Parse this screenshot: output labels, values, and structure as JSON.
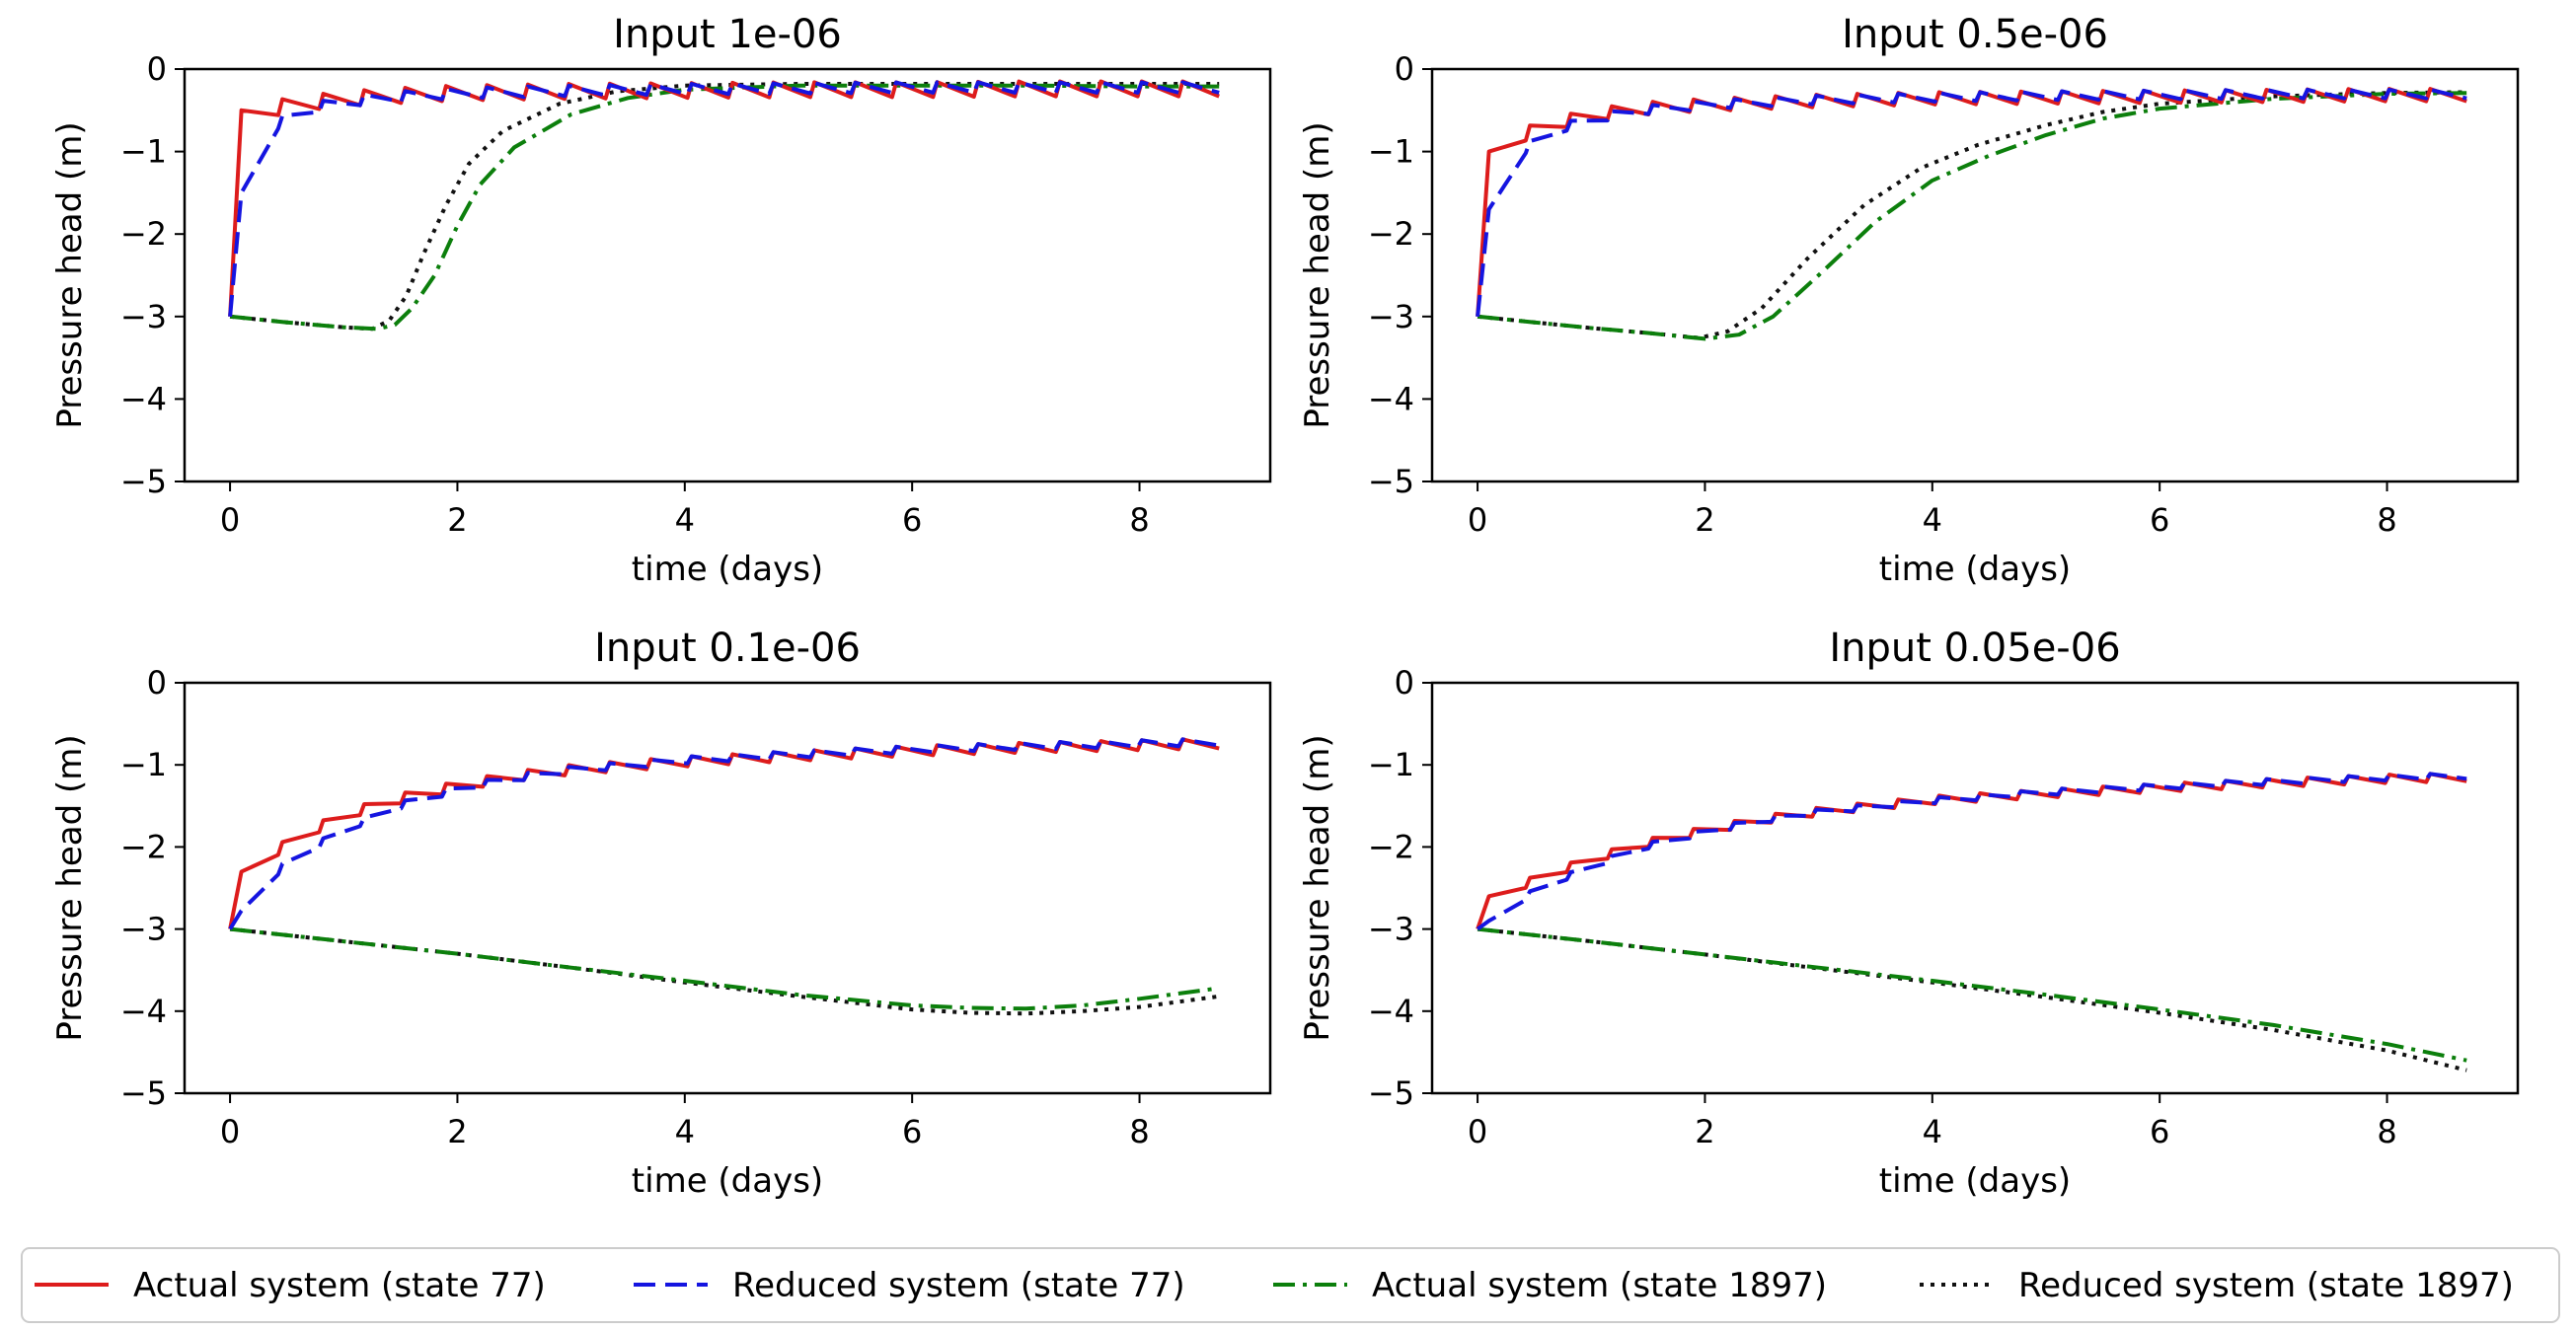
{
  "legend": [
    {
      "key": "actual_77",
      "label": "Actual system (state 77)",
      "color": "#dd1c1c",
      "dash": "solid"
    },
    {
      "key": "reduced_77",
      "label": "Reduced system (state 77)",
      "color": "#1515e0",
      "dash": "dashed"
    },
    {
      "key": "actual_1897",
      "label": "Actual system (state 1897)",
      "color": "#0c7f0c",
      "dash": "dashdot"
    },
    {
      "key": "reduced_1897",
      "label": "Reduced system (state 1897)",
      "color": "#111111",
      "dash": "dotted"
    }
  ],
  "chart_data": [
    {
      "type": "line",
      "title": "Input 1e-06",
      "xlabel": "time (days)",
      "ylabel": "Pressure head (m)",
      "xlim": [
        -0.4,
        9.15
      ],
      "ylim": [
        -5,
        0
      ],
      "xticks": [
        "0",
        "2",
        "4",
        "6",
        "8"
      ],
      "yticks": [
        "0",
        "−1",
        "−2",
        "−3",
        "−4",
        "−5"
      ],
      "sawtooth": {
        "start": -3.0,
        "period": 0.36,
        "t_end": 8.7,
        "drop": 0.18
      },
      "series": [
        {
          "key": "actual_77",
          "name": "Actual system (state 77)",
          "x": [
            0,
            0.1,
            0.5,
            1,
            1.5,
            2,
            3,
            4,
            5,
            6,
            7,
            8,
            8.7
          ],
          "y": [
            -3.0,
            -0.5,
            -0.35,
            -0.27,
            -0.23,
            -0.2,
            -0.18,
            -0.17,
            -0.16,
            -0.16,
            -0.15,
            -0.15,
            -0.15
          ]
        },
        {
          "key": "reduced_77",
          "name": "Reduced system (state 77)",
          "x": [
            0,
            0.1,
            0.3,
            0.6,
            1,
            1.5,
            2,
            3,
            4,
            5,
            6,
            7,
            8,
            8.7
          ],
          "y": [
            -3.0,
            -1.5,
            -0.7,
            -0.45,
            -0.33,
            -0.27,
            -0.23,
            -0.2,
            -0.18,
            -0.17,
            -0.16,
            -0.16,
            -0.16,
            -0.16
          ]
        },
        {
          "key": "actual_1897",
          "name": "Actual system (state 1897)",
          "x": [
            0,
            0.5,
            1,
            1.3,
            1.45,
            1.6,
            1.8,
            2,
            2.2,
            2.5,
            3,
            3.5,
            4,
            5,
            6,
            7,
            8,
            8.7
          ],
          "y": [
            -3.0,
            -3.07,
            -3.13,
            -3.15,
            -3.1,
            -2.9,
            -2.5,
            -1.9,
            -1.4,
            -0.95,
            -0.55,
            -0.35,
            -0.25,
            -0.2,
            -0.2,
            -0.2,
            -0.21,
            -0.21
          ]
        },
        {
          "key": "reduced_1897",
          "name": "Reduced system (state 1897)",
          "x": [
            0,
            0.5,
            1,
            1.25,
            1.4,
            1.55,
            1.7,
            1.9,
            2.1,
            2.4,
            2.9,
            3.4,
            4,
            5,
            6,
            7,
            8,
            8.7
          ],
          "y": [
            -3.0,
            -3.07,
            -3.13,
            -3.15,
            -3.05,
            -2.75,
            -2.25,
            -1.65,
            -1.15,
            -0.75,
            -0.42,
            -0.27,
            -0.2,
            -0.18,
            -0.18,
            -0.18,
            -0.18,
            -0.18
          ]
        }
      ]
    },
    {
      "type": "line",
      "title": "Input 0.5e-06",
      "xlabel": "time (days)",
      "ylabel": "Pressure head (m)",
      "xlim": [
        -0.4,
        9.15
      ],
      "ylim": [
        -5,
        0
      ],
      "xticks": [
        "0",
        "2",
        "4",
        "6",
        "8"
      ],
      "yticks": [
        "0",
        "−1",
        "−2",
        "−3",
        "−4",
        "−5"
      ],
      "sawtooth": {
        "start": -3.0,
        "period": 0.36,
        "t_end": 8.7,
        "drop": 0.15
      },
      "series": [
        {
          "key": "actual_77",
          "name": "Actual system (state 77)",
          "x": [
            0,
            0.1,
            0.5,
            1,
            1.5,
            2,
            3,
            4,
            5,
            6,
            7,
            8,
            8.7
          ],
          "y": [
            -3.0,
            -1.0,
            -0.65,
            -0.48,
            -0.4,
            -0.36,
            -0.31,
            -0.28,
            -0.27,
            -0.26,
            -0.25,
            -0.24,
            -0.24
          ]
        },
        {
          "key": "reduced_77",
          "name": "Reduced system (state 77)",
          "x": [
            0,
            0.1,
            0.3,
            0.6,
            1,
            1.5,
            2,
            3,
            4,
            5,
            6,
            7,
            8,
            8.7
          ],
          "y": [
            -3.0,
            -1.7,
            -1.05,
            -0.72,
            -0.55,
            -0.44,
            -0.38,
            -0.32,
            -0.29,
            -0.27,
            -0.26,
            -0.25,
            -0.25,
            -0.25
          ]
        },
        {
          "key": "actual_1897",
          "name": "Actual system (state 1897)",
          "x": [
            0,
            0.5,
            1,
            1.5,
            2,
            2.3,
            2.6,
            3,
            3.5,
            4,
            4.5,
            5,
            5.5,
            6,
            7,
            8,
            8.7
          ],
          "y": [
            -3.0,
            -3.07,
            -3.14,
            -3.2,
            -3.27,
            -3.22,
            -3.0,
            -2.5,
            -1.85,
            -1.35,
            -1.05,
            -0.8,
            -0.6,
            -0.48,
            -0.36,
            -0.3,
            -0.29
          ]
        },
        {
          "key": "reduced_1897",
          "name": "Reduced system (state 1897)",
          "x": [
            0,
            0.5,
            1,
            1.5,
            1.95,
            2.2,
            2.5,
            2.9,
            3.4,
            3.9,
            4.4,
            5,
            5.5,
            6,
            7,
            8,
            8.7
          ],
          "y": [
            -3.0,
            -3.07,
            -3.14,
            -3.2,
            -3.26,
            -3.18,
            -2.9,
            -2.3,
            -1.65,
            -1.2,
            -0.92,
            -0.68,
            -0.52,
            -0.42,
            -0.33,
            -0.29,
            -0.28
          ]
        }
      ]
    },
    {
      "type": "line",
      "title": "Input 0.1e-06",
      "xlabel": "time (days)",
      "ylabel": "Pressure head (m)",
      "xlim": [
        -0.4,
        9.15
      ],
      "ylim": [
        -5,
        0
      ],
      "xticks": [
        "0",
        "2",
        "4",
        "6",
        "8"
      ],
      "yticks": [
        "0",
        "−1",
        "−2",
        "−3",
        "−4",
        "−5"
      ],
      "sawtooth": {
        "start": -3.0,
        "period": 0.36,
        "t_end": 8.7,
        "drop": 0.12
      },
      "series": [
        {
          "key": "actual_77",
          "name": "Actual system (state 77)",
          "x": [
            0,
            0.1,
            0.5,
            1,
            1.5,
            2,
            2.5,
            3,
            4,
            5,
            6,
            7,
            8,
            8.7
          ],
          "y": [
            -3.0,
            -2.3,
            -1.9,
            -1.55,
            -1.35,
            -1.2,
            -1.08,
            -1.0,
            -0.9,
            -0.83,
            -0.77,
            -0.73,
            -0.7,
            -0.68
          ]
        },
        {
          "key": "reduced_77",
          "name": "Reduced system (state 77)",
          "x": [
            0,
            0.2,
            0.5,
            1,
            1.5,
            2,
            2.5,
            3,
            4,
            5,
            6,
            7,
            8,
            8.7
          ],
          "y": [
            -3.0,
            -2.55,
            -2.15,
            -1.75,
            -1.45,
            -1.25,
            -1.12,
            -1.02,
            -0.9,
            -0.83,
            -0.77,
            -0.73,
            -0.7,
            -0.68
          ]
        },
        {
          "key": "actual_1897",
          "name": "Actual system (state 1897)",
          "x": [
            0,
            1,
            2,
            3,
            4,
            5,
            6,
            6.5,
            7,
            7.5,
            8,
            8.7
          ],
          "y": [
            -3.0,
            -3.15,
            -3.3,
            -3.47,
            -3.63,
            -3.8,
            -3.93,
            -3.96,
            -3.97,
            -3.93,
            -3.85,
            -3.72
          ]
        },
        {
          "key": "reduced_1897",
          "name": "Reduced system (state 1897)",
          "x": [
            0,
            1,
            2,
            3,
            4,
            5,
            6,
            6.5,
            7,
            7.5,
            8,
            8.7
          ],
          "y": [
            -3.0,
            -3.15,
            -3.3,
            -3.47,
            -3.65,
            -3.82,
            -3.98,
            -4.02,
            -4.03,
            -4.0,
            -3.95,
            -3.82
          ]
        }
      ]
    },
    {
      "type": "line",
      "title": "Input 0.05e-06",
      "xlabel": "time (days)",
      "ylabel": "Pressure head (m)",
      "xlim": [
        -0.4,
        9.15
      ],
      "ylim": [
        -5,
        0
      ],
      "xticks": [
        "0",
        "2",
        "4",
        "6",
        "8"
      ],
      "yticks": [
        "0",
        "−1",
        "−2",
        "−3",
        "−4",
        "−5"
      ],
      "sawtooth": {
        "start": -3.0,
        "period": 0.36,
        "t_end": 8.7,
        "drop": 0.1
      },
      "series": [
        {
          "key": "actual_77",
          "name": "Actual system (state 77)",
          "x": [
            0,
            0.1,
            0.5,
            1,
            1.5,
            2,
            2.5,
            3,
            4,
            5,
            6,
            7,
            8,
            8.7
          ],
          "y": [
            -3.0,
            -2.6,
            -2.35,
            -2.1,
            -1.9,
            -1.75,
            -1.62,
            -1.52,
            -1.38,
            -1.3,
            -1.23,
            -1.17,
            -1.12,
            -1.1
          ]
        },
        {
          "key": "reduced_77",
          "name": "Reduced system (state 77)",
          "x": [
            0,
            0.2,
            0.5,
            1,
            1.5,
            2,
            2.5,
            3,
            4,
            5,
            6,
            7,
            8,
            8.7
          ],
          "y": [
            -3.0,
            -2.8,
            -2.5,
            -2.2,
            -1.95,
            -1.78,
            -1.64,
            -1.54,
            -1.4,
            -1.3,
            -1.23,
            -1.17,
            -1.12,
            -1.1
          ]
        },
        {
          "key": "actual_1897",
          "name": "Actual system (state 1897)",
          "x": [
            0,
            1,
            2,
            3,
            4,
            5,
            6,
            7,
            8,
            8.7
          ],
          "y": [
            -3.0,
            -3.15,
            -3.31,
            -3.47,
            -3.63,
            -3.8,
            -3.98,
            -4.17,
            -4.4,
            -4.6
          ]
        },
        {
          "key": "reduced_1897",
          "name": "Reduced system (state 1897)",
          "x": [
            0,
            1,
            2,
            3,
            4,
            5,
            6,
            7,
            8,
            8.7
          ],
          "y": [
            -3.0,
            -3.15,
            -3.31,
            -3.48,
            -3.65,
            -3.83,
            -4.02,
            -4.23,
            -4.48,
            -4.72
          ]
        }
      ]
    }
  ]
}
